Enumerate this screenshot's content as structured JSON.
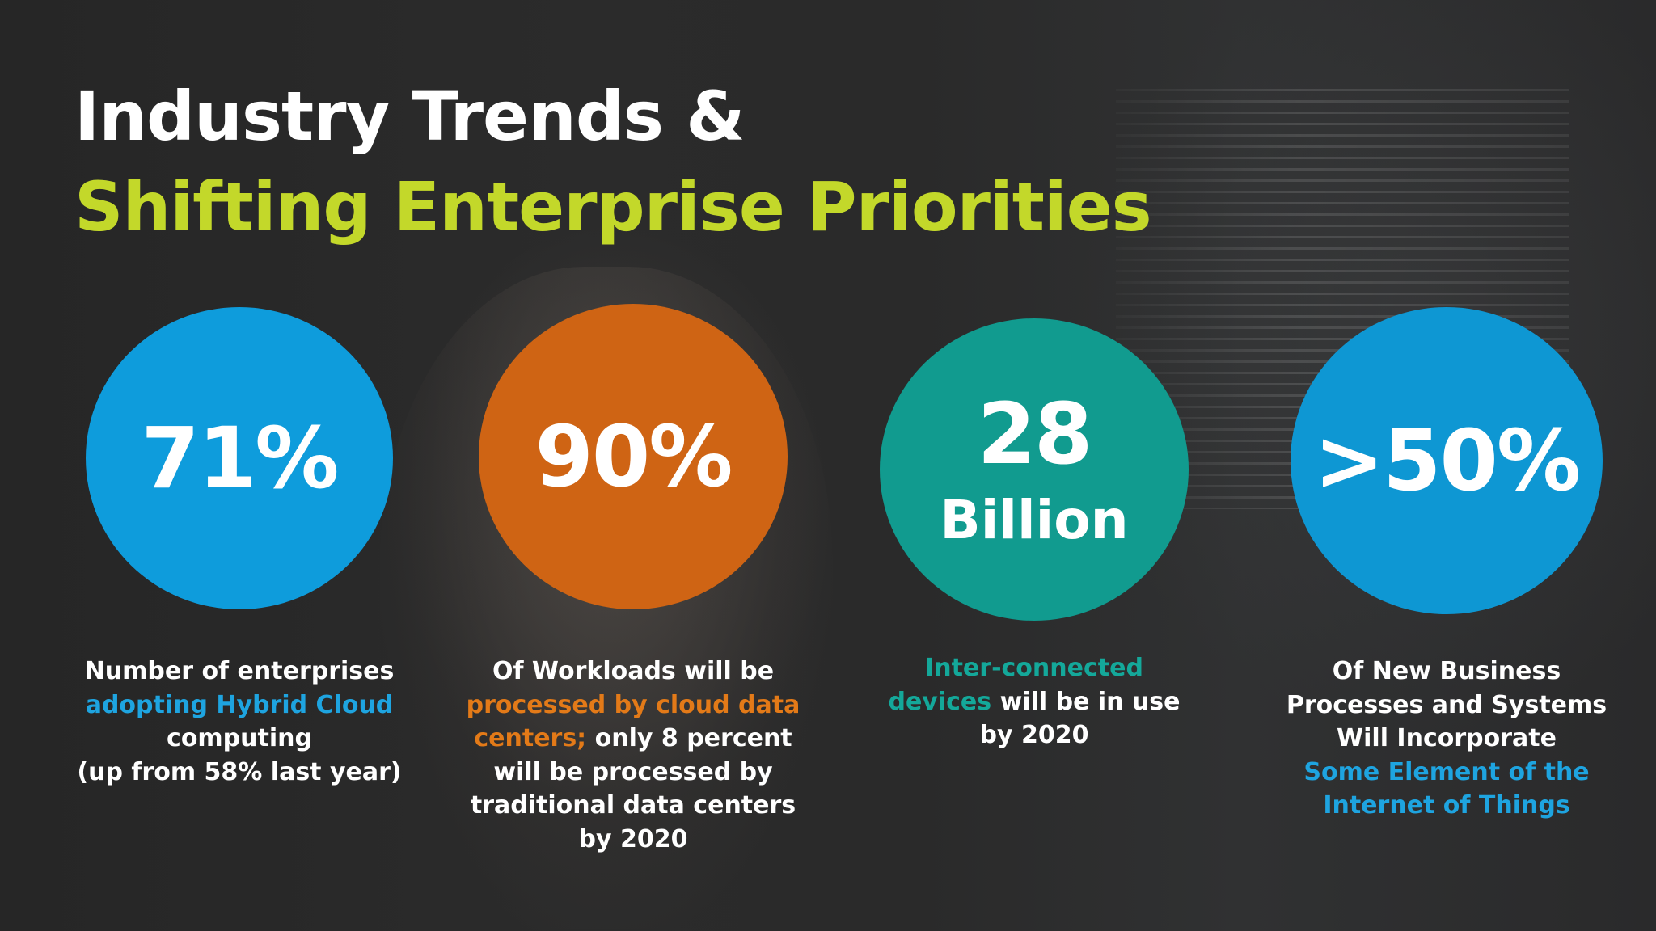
{
  "title": {
    "line1": "Industry Trends &",
    "line2": "Shifting Enterprise Priorities"
  },
  "stats": [
    {
      "value": "71%",
      "color": "#0e9cdc",
      "lines": [
        [
          {
            "text": "Number of enterprises",
            "hl": false
          }
        ],
        [
          {
            "text": "adopting Hybrid Cloud",
            "hl": true
          }
        ],
        [
          {
            "text": "computing",
            "hl": false
          }
        ],
        [
          {
            "text": "(up from 58% last year)",
            "hl": false
          }
        ]
      ]
    },
    {
      "value": "90%",
      "color": "#cf6414",
      "lines": [
        [
          {
            "text": "Of Workloads will be",
            "hl": false
          }
        ],
        [
          {
            "text": "processed by cloud data",
            "hl": true
          }
        ],
        [
          {
            "text": "centers;",
            "hl": true
          },
          {
            "text": " only 8 percent",
            "hl": false
          }
        ],
        [
          {
            "text": "will be processed by",
            "hl": false
          }
        ],
        [
          {
            "text": "traditional data centers",
            "hl": false
          }
        ],
        [
          {
            "text": "by 2020",
            "hl": false
          }
        ]
      ]
    },
    {
      "value": "28",
      "unit": "Billion",
      "color": "#119b8f",
      "lines": [
        [
          {
            "text": "Inter-connected",
            "hl": true
          }
        ],
        [
          {
            "text": "devices",
            "hl": true
          },
          {
            "text": " will be in use",
            "hl": false
          }
        ],
        [
          {
            "text": "by 2020",
            "hl": false
          }
        ]
      ]
    },
    {
      "value": ">50%",
      "color": "#0e97d3",
      "lines": [
        [
          {
            "text": "Of New Business",
            "hl": false
          }
        ],
        [
          {
            "text": "Processes and Systems",
            "hl": false
          }
        ],
        [
          {
            "text": "Will Incorporate",
            "hl": false
          }
        ],
        [
          {
            "text": "Some Element of the",
            "hl": true
          }
        ],
        [
          {
            "text": "Internet of Things",
            "hl": true
          }
        ]
      ]
    }
  ]
}
